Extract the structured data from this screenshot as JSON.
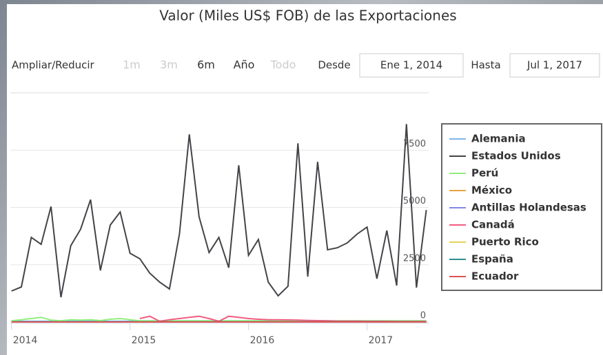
{
  "chart_data": {
    "type": "line",
    "title": "Valor (Miles US$ FOB) de las Exportaciones",
    "range_selector": {
      "zoom_label": "Ampliar/Reducir",
      "buttons": [
        "1m",
        "3m",
        "6m",
        "Año",
        "Todo"
      ],
      "from_label": "Desde",
      "from": "Ene 1, 2014",
      "to_label": "Hasta",
      "to": "Jul 1, 2017"
    },
    "x": [
      2014,
      2014.083,
      2014.167,
      2014.25,
      2014.333,
      2014.417,
      2014.5,
      2014.583,
      2014.667,
      2014.75,
      2014.833,
      2014.917,
      2015,
      2015.083,
      2015.167,
      2015.25,
      2015.333,
      2015.417,
      2015.5,
      2015.583,
      2015.667,
      2015.75,
      2015.833,
      2015.917,
      2016,
      2016.083,
      2016.167,
      2016.25,
      2016.333,
      2016.417,
      2016.5,
      2016.583,
      2016.667,
      2016.75,
      2016.833,
      2016.917,
      2017,
      2017.083,
      2017.167,
      2017.25,
      2017.333,
      2017.417,
      2017.5
    ],
    "xlim": [
      2013.99,
      2017.52
    ],
    "xticks": [
      2014,
      2015,
      2016,
      2017
    ],
    "ylim": [
      0,
      10000
    ],
    "yticks": [
      0,
      2500,
      5000,
      7500
    ],
    "grid": true,
    "legend": "right",
    "series": [
      {
        "name": "Alemania",
        "color": "#7cb5ec",
        "values": [
          30,
          30,
          30,
          30,
          30,
          30,
          30,
          30,
          30,
          30,
          30,
          30,
          30,
          30,
          30,
          30,
          30,
          30,
          30,
          30,
          30,
          30,
          30,
          30,
          30,
          30,
          30,
          30,
          30,
          30,
          30,
          30,
          30,
          30,
          30,
          30,
          30,
          30,
          30,
          30,
          30,
          30,
          30
        ]
      },
      {
        "name": "Estados Unidos",
        "color": "#434348",
        "values": [
          1350,
          1530,
          3690,
          3390,
          5040,
          1080,
          3330,
          4050,
          5340,
          2250,
          4230,
          4800,
          3000,
          2760,
          2130,
          1740,
          1440,
          3840,
          8190,
          4590,
          3030,
          3690,
          2370,
          6840,
          2910,
          3600,
          1740,
          1140,
          1560,
          7800,
          1980,
          6990,
          3150,
          3240,
          3450,
          3840,
          4140,
          1890,
          3990,
          1590,
          8640,
          1500,
          4890
        ]
      },
      {
        "name": "Perú",
        "color": "#90ed7d",
        "values": [
          50,
          100,
          150,
          200,
          80,
          50,
          100,
          80,
          100,
          60,
          120,
          150,
          100,
          50,
          50,
          50,
          50,
          50,
          50,
          50,
          50,
          50,
          50,
          50,
          50,
          50,
          50,
          50,
          50,
          50,
          50,
          50,
          50,
          50,
          50,
          50,
          50,
          50,
          50,
          50,
          50,
          50,
          50
        ]
      },
      {
        "name": "México",
        "color": "#e8a33c",
        "values": [
          0,
          0,
          0,
          0,
          0,
          0,
          0,
          0,
          0,
          0,
          0,
          0,
          0,
          0,
          0,
          0,
          0,
          0,
          0,
          0,
          0,
          0,
          0,
          0,
          0,
          0,
          0,
          0,
          0,
          0,
          0,
          0,
          0,
          0,
          0,
          0,
          0,
          0,
          0,
          0,
          0,
          0,
          0
        ]
      },
      {
        "name": "Antillas Holandesas",
        "color": "#8085e9",
        "values": [
          0,
          0,
          0,
          0,
          0,
          0,
          0,
          0,
          0,
          0,
          0,
          0,
          0,
          0,
          0,
          0,
          0,
          0,
          0,
          0,
          0,
          0,
          0,
          0,
          0,
          0,
          0,
          0,
          0,
          0,
          0,
          0,
          0,
          0,
          0,
          0,
          0,
          0,
          0,
          0,
          0,
          0,
          0
        ]
      },
      {
        "name": "Canadá",
        "color": "#f15c80",
        "values": [
          null,
          null,
          null,
          null,
          null,
          null,
          null,
          null,
          null,
          null,
          null,
          null,
          null,
          150,
          250,
          30,
          100,
          150,
          200,
          250,
          150,
          30,
          250,
          200,
          150,
          120,
          100,
          100,
          90,
          80,
          70,
          60,
          50,
          40,
          40,
          40,
          30,
          30,
          30,
          20,
          20,
          20,
          20
        ]
      },
      {
        "name": "Puerto Rico",
        "color": "#e4d354",
        "values": [
          0,
          0,
          0,
          0,
          0,
          0,
          0,
          0,
          0,
          0,
          0,
          0,
          0,
          0,
          0,
          0,
          0,
          0,
          0,
          0,
          0,
          0,
          0,
          0,
          0,
          0,
          0,
          0,
          0,
          0,
          0,
          0,
          0,
          0,
          0,
          0,
          0,
          0,
          0,
          0,
          0,
          0,
          0
        ]
      },
      {
        "name": "España",
        "color": "#2b908f",
        "values": [
          10,
          10,
          10,
          10,
          10,
          10,
          10,
          10,
          10,
          10,
          10,
          10,
          10,
          10,
          10,
          10,
          10,
          10,
          10,
          10,
          10,
          10,
          10,
          10,
          10,
          10,
          10,
          10,
          10,
          10,
          10,
          10,
          10,
          10,
          10,
          10,
          10,
          10,
          10,
          10,
          10,
          10,
          10
        ]
      },
      {
        "name": "Ecuador",
        "color": "#d9534f",
        "values": [
          0,
          0,
          0,
          0,
          0,
          0,
          0,
          0,
          0,
          0,
          0,
          0,
          0,
          0,
          0,
          0,
          0,
          0,
          0,
          0,
          0,
          0,
          0,
          0,
          0,
          0,
          0,
          0,
          0,
          0,
          0,
          0,
          0,
          0,
          0,
          0,
          0,
          0,
          0,
          0,
          0,
          0,
          0
        ]
      }
    ]
  }
}
